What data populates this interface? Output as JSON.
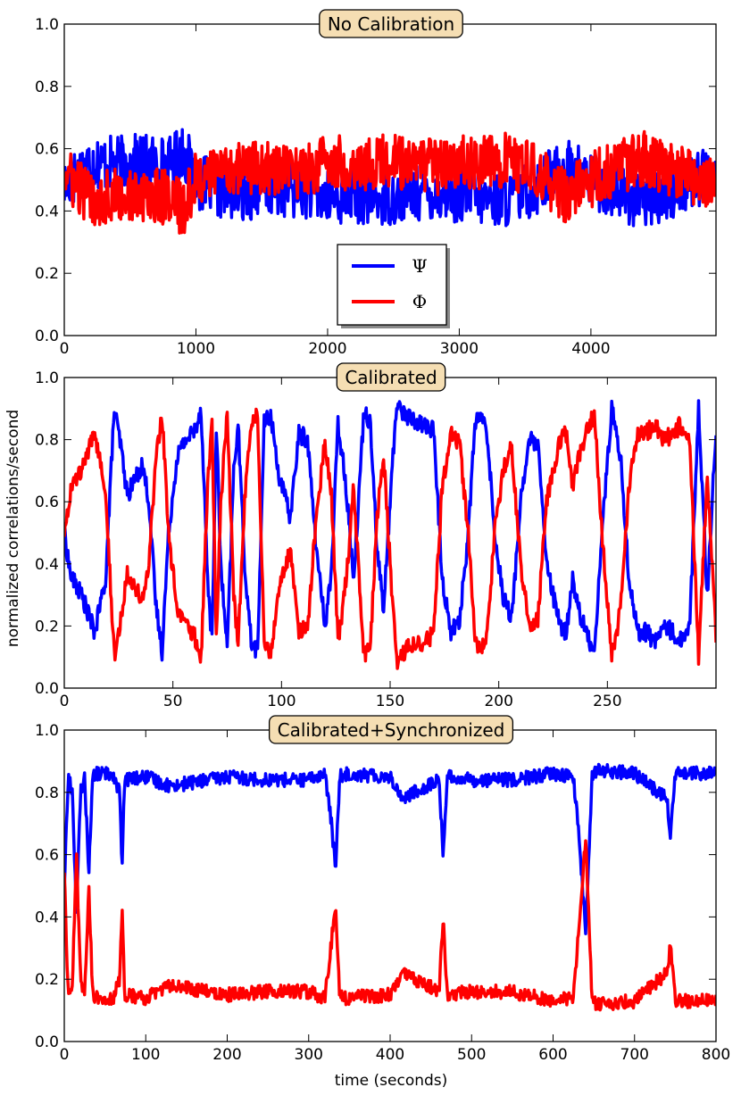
{
  "figure": {
    "ylabel": "normalized correlations/second",
    "xlabel": "time (seconds)"
  },
  "colors": {
    "psi": "#0000ff",
    "phi": "#ff0000",
    "title_box": "#f5deb3"
  },
  "chart_data": [
    {
      "type": "line",
      "title": "No Calibration",
      "xlim": [
        0,
        4950
      ],
      "ylim": [
        0.0,
        1.0
      ],
      "xticks": [
        "0",
        "1000",
        "2000",
        "3000",
        "4000"
      ],
      "xtick_values": [
        0,
        1000,
        2000,
        3000,
        4000
      ],
      "yticks": [
        "0.0",
        "0.2",
        "0.4",
        "0.6",
        "0.8",
        "1.0"
      ],
      "ytick_values": [
        0,
        0.2,
        0.4,
        0.6,
        0.8,
        1.0
      ],
      "legend": {
        "position": "lower-center",
        "entries": [
          "Ψ",
          "Φ"
        ]
      },
      "series": [
        {
          "name": "Ψ",
          "x": [
            0,
            200,
            400,
            600,
            800,
            900,
            1000,
            1200,
            1400,
            1600,
            1800,
            2000,
            2200,
            2400,
            2600,
            2800,
            3000,
            3200,
            3400,
            3600,
            3800,
            4000,
            4200,
            4400,
            4600,
            4800,
            4950
          ],
          "y": [
            0.48,
            0.56,
            0.55,
            0.56,
            0.55,
            0.6,
            0.5,
            0.46,
            0.46,
            0.47,
            0.47,
            0.44,
            0.45,
            0.44,
            0.45,
            0.46,
            0.45,
            0.44,
            0.44,
            0.48,
            0.55,
            0.5,
            0.46,
            0.43,
            0.46,
            0.5,
            0.52
          ],
          "noise": 0.09
        },
        {
          "name": "Φ",
          "x": [
            0,
            200,
            400,
            600,
            800,
            900,
            1000,
            1200,
            1400,
            1600,
            1800,
            2000,
            2200,
            2400,
            2600,
            2800,
            3000,
            3200,
            3400,
            3600,
            3800,
            4000,
            4200,
            4400,
            4600,
            4800,
            4950
          ],
          "y": [
            0.52,
            0.44,
            0.45,
            0.44,
            0.45,
            0.4,
            0.5,
            0.54,
            0.54,
            0.53,
            0.53,
            0.56,
            0.55,
            0.56,
            0.55,
            0.54,
            0.55,
            0.56,
            0.56,
            0.52,
            0.45,
            0.5,
            0.54,
            0.57,
            0.54,
            0.5,
            0.48
          ],
          "noise": 0.09
        }
      ]
    },
    {
      "type": "line",
      "title": "Calibrated",
      "xlim": [
        0,
        300
      ],
      "ylim": [
        0.0,
        1.0
      ],
      "xticks": [
        "0",
        "50",
        "100",
        "150",
        "200",
        "250"
      ],
      "xtick_values": [
        0,
        50,
        100,
        150,
        200,
        250
      ],
      "yticks": [
        "0.0",
        "0.2",
        "0.4",
        "0.6",
        "0.8",
        "1.0"
      ],
      "ytick_values": [
        0,
        0.2,
        0.4,
        0.6,
        0.8,
        1.0
      ],
      "series": [
        {
          "name": "Ψ",
          "x": [
            0,
            3,
            8,
            14,
            19,
            23,
            26,
            29,
            33,
            36,
            39,
            42,
            45,
            48,
            52,
            56,
            60,
            63,
            66,
            68,
            70,
            72,
            75,
            78,
            80,
            83,
            86,
            89,
            92,
            95,
            99,
            104,
            108,
            112,
            116,
            120,
            123,
            126,
            129,
            131,
            133,
            135,
            138,
            141,
            144,
            147,
            150,
            153,
            157,
            161,
            165,
            170,
            174,
            178,
            182,
            186,
            189,
            192,
            195,
            198,
            202,
            206,
            210,
            214,
            218,
            222,
            225,
            228,
            231,
            234,
            237,
            240,
            244,
            248,
            252,
            256,
            260,
            264,
            268,
            272,
            276,
            280,
            284,
            288,
            292,
            296,
            300
          ],
          "y": [
            0.5,
            0.36,
            0.3,
            0.18,
            0.35,
            0.9,
            0.78,
            0.62,
            0.68,
            0.72,
            0.6,
            0.28,
            0.12,
            0.5,
            0.75,
            0.8,
            0.83,
            0.9,
            0.35,
            0.15,
            0.85,
            0.4,
            0.12,
            0.7,
            0.85,
            0.4,
            0.15,
            0.12,
            0.85,
            0.88,
            0.68,
            0.55,
            0.82,
            0.8,
            0.45,
            0.2,
            0.38,
            0.85,
            0.7,
            0.55,
            0.35,
            0.55,
            0.9,
            0.85,
            0.45,
            0.25,
            0.6,
            0.92,
            0.88,
            0.86,
            0.85,
            0.83,
            0.35,
            0.18,
            0.22,
            0.5,
            0.85,
            0.88,
            0.8,
            0.5,
            0.3,
            0.22,
            0.6,
            0.8,
            0.78,
            0.4,
            0.3,
            0.2,
            0.18,
            0.35,
            0.25,
            0.18,
            0.12,
            0.55,
            0.9,
            0.75,
            0.35,
            0.18,
            0.18,
            0.15,
            0.2,
            0.18,
            0.15,
            0.22,
            0.9,
            0.3,
            0.84
          ],
          "noise": 0.03
        },
        {
          "name": "Φ",
          "x": [
            0,
            3,
            8,
            14,
            19,
            23,
            26,
            29,
            33,
            36,
            39,
            42,
            45,
            48,
            52,
            56,
            60,
            63,
            66,
            68,
            70,
            72,
            75,
            78,
            80,
            83,
            86,
            89,
            92,
            95,
            99,
            104,
            108,
            112,
            116,
            120,
            123,
            126,
            129,
            131,
            133,
            135,
            138,
            141,
            144,
            147,
            150,
            153,
            157,
            161,
            165,
            170,
            174,
            178,
            182,
            186,
            189,
            192,
            195,
            198,
            202,
            206,
            210,
            214,
            218,
            222,
            225,
            228,
            231,
            234,
            237,
            240,
            244,
            248,
            252,
            256,
            260,
            264,
            268,
            272,
            276,
            280,
            284,
            288,
            292,
            296,
            300
          ],
          "y": [
            0.5,
            0.64,
            0.7,
            0.82,
            0.65,
            0.1,
            0.22,
            0.38,
            0.32,
            0.28,
            0.4,
            0.72,
            0.88,
            0.5,
            0.25,
            0.2,
            0.17,
            0.1,
            0.65,
            0.85,
            0.15,
            0.6,
            0.88,
            0.3,
            0.15,
            0.6,
            0.85,
            0.88,
            0.15,
            0.12,
            0.32,
            0.45,
            0.18,
            0.2,
            0.55,
            0.8,
            0.62,
            0.15,
            0.3,
            0.45,
            0.65,
            0.45,
            0.1,
            0.15,
            0.55,
            0.75,
            0.4,
            0.08,
            0.12,
            0.14,
            0.15,
            0.17,
            0.65,
            0.82,
            0.78,
            0.5,
            0.15,
            0.12,
            0.2,
            0.5,
            0.7,
            0.78,
            0.4,
            0.2,
            0.22,
            0.6,
            0.7,
            0.8,
            0.82,
            0.65,
            0.75,
            0.82,
            0.88,
            0.45,
            0.1,
            0.25,
            0.65,
            0.82,
            0.82,
            0.85,
            0.8,
            0.82,
            0.85,
            0.78,
            0.1,
            0.7,
            0.16
          ],
          "noise": 0.03
        }
      ]
    },
    {
      "type": "line",
      "title": "Calibrated+Synchronized",
      "xlim": [
        0,
        800
      ],
      "ylim": [
        0.0,
        1.0
      ],
      "xticks": [
        "0",
        "100",
        "200",
        "300",
        "400",
        "500",
        "600",
        "700",
        "800"
      ],
      "xtick_values": [
        0,
        100,
        200,
        300,
        400,
        500,
        600,
        700,
        800
      ],
      "yticks": [
        "0.0",
        "0.2",
        "0.4",
        "0.6",
        "0.8",
        "1.0"
      ],
      "ytick_values": [
        0,
        0.2,
        0.4,
        0.6,
        0.8,
        1.0
      ],
      "series": [
        {
          "name": "Ψ",
          "x": [
            0,
            5,
            10,
            15,
            20,
            25,
            30,
            35,
            40,
            60,
            68,
            71,
            74,
            100,
            130,
            200,
            250,
            300,
            320,
            328,
            333,
            338,
            345,
            400,
            415,
            460,
            465,
            470,
            500,
            550,
            600,
            625,
            632,
            640,
            648,
            655,
            700,
            740,
            744,
            750,
            800
          ],
          "y": [
            0.5,
            0.85,
            0.8,
            0.4,
            0.8,
            0.85,
            0.55,
            0.85,
            0.86,
            0.86,
            0.8,
            0.55,
            0.84,
            0.85,
            0.82,
            0.85,
            0.84,
            0.84,
            0.86,
            0.7,
            0.55,
            0.85,
            0.86,
            0.85,
            0.78,
            0.84,
            0.6,
            0.85,
            0.84,
            0.84,
            0.86,
            0.85,
            0.65,
            0.35,
            0.86,
            0.87,
            0.86,
            0.78,
            0.65,
            0.86,
            0.86
          ],
          "noise": 0.022
        },
        {
          "name": "Φ",
          "x": [
            0,
            5,
            10,
            15,
            20,
            25,
            30,
            35,
            40,
            60,
            68,
            71,
            74,
            100,
            130,
            200,
            250,
            300,
            320,
            328,
            333,
            338,
            345,
            400,
            415,
            460,
            465,
            470,
            500,
            550,
            600,
            625,
            632,
            640,
            648,
            655,
            700,
            740,
            744,
            750,
            800
          ],
          "y": [
            0.55,
            0.14,
            0.18,
            0.6,
            0.2,
            0.15,
            0.5,
            0.15,
            0.14,
            0.14,
            0.2,
            0.45,
            0.15,
            0.14,
            0.18,
            0.15,
            0.16,
            0.16,
            0.14,
            0.32,
            0.45,
            0.15,
            0.14,
            0.15,
            0.22,
            0.16,
            0.4,
            0.15,
            0.16,
            0.16,
            0.13,
            0.14,
            0.38,
            0.65,
            0.13,
            0.12,
            0.13,
            0.22,
            0.32,
            0.13,
            0.13
          ],
          "noise": 0.022
        }
      ]
    }
  ]
}
